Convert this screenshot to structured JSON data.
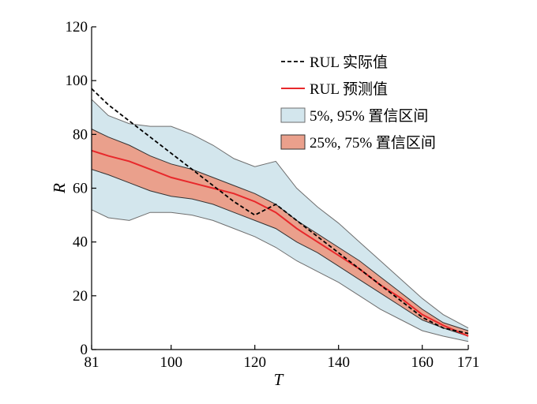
{
  "chart_data": {
    "type": "area",
    "xlabel": "T",
    "ylabel": "R",
    "xlim": [
      81,
      171
    ],
    "ylim": [
      0,
      120
    ],
    "x_ticks": [
      81,
      100,
      120,
      140,
      160,
      171
    ],
    "y_ticks": [
      0,
      20,
      40,
      60,
      80,
      100,
      120
    ],
    "grid": false,
    "legend_position": "top-right",
    "colors": {
      "actual": "#000000",
      "predicted": "#e8282b",
      "band_outer_fill": "#d3e6ed",
      "band_inner_fill": "#eaa08c",
      "band_edge": "#6e6e6e"
    },
    "x": [
      81,
      85,
      90,
      95,
      100,
      105,
      110,
      115,
      120,
      125,
      130,
      135,
      140,
      145,
      150,
      155,
      160,
      165,
      171
    ],
    "series": [
      {
        "name": "RUL 实际值",
        "style": "dashed",
        "values": [
          97,
          91,
          85,
          79,
          73,
          67,
          61,
          55,
          50,
          54,
          48,
          42,
          36,
          30,
          24,
          18,
          12,
          8,
          6
        ]
      },
      {
        "name": "RUL 预测值",
        "style": "solid",
        "values": [
          74,
          72,
          70,
          67,
          64,
          62,
          60,
          58,
          55,
          51,
          45,
          40,
          35,
          30,
          24,
          19,
          13,
          9,
          5
        ]
      }
    ],
    "bands": [
      {
        "name": "5%, 95% 置信区间",
        "lower": [
          52,
          49,
          48,
          51,
          51,
          50,
          48,
          45,
          42,
          38,
          33,
          29,
          25,
          20,
          15,
          11,
          7,
          5,
          3
        ],
        "upper": [
          93,
          87,
          84,
          83,
          83,
          80,
          76,
          71,
          68,
          70,
          60,
          53,
          47,
          40,
          33,
          26,
          19,
          13,
          8
        ]
      },
      {
        "name": "25%, 75% 置信区间",
        "lower": [
          67,
          65,
          62,
          59,
          57,
          56,
          54,
          51,
          48,
          45,
          40,
          36,
          31,
          26,
          21,
          16,
          11,
          8,
          5
        ],
        "upper": [
          82,
          79,
          76,
          72,
          69,
          67,
          64,
          61,
          58,
          54,
          48,
          43,
          38,
          33,
          27,
          21,
          15,
          10,
          7
        ]
      }
    ]
  }
}
